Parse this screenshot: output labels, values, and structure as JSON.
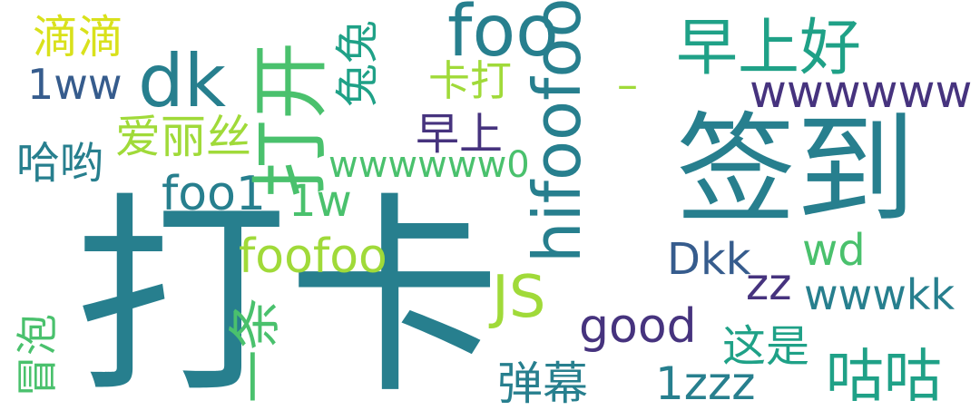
{
  "palette": {
    "purple": "#46337e",
    "dark_blue": "#365c8d",
    "blue": "#277f8e",
    "teal": "#1fa187",
    "green": "#4ac16d",
    "light_green": "#a0da39",
    "yellow": "#d9e11b"
  },
  "words": {
    "daka": "打卡",
    "qiandao": "签到",
    "foofoo_h": "foofoo",
    "hifoofoo": "hifoofoo",
    "foo": "foo",
    "dakai": "打开",
    "zaoshanghao": "早上好",
    "dk": "dk",
    "wwwwww": "wwwwww",
    "didi": "滴滴",
    "tutu": "兔兔",
    "1ww": "1ww",
    "kada": "卡打",
    "dash": "–",
    "ailisi": "爱丽丝",
    "zaoshang": "早上",
    "haliao": "哈哟",
    "wwwwww0": "wwwwww0",
    "foo1": "foo1",
    "1w": "1w",
    "wd": "wd",
    "Dkk": "Dkk",
    "zz": "zz",
    "wwwkk": "wwwkk",
    "js": "JS",
    "good": "good",
    "maopao": "冒泡",
    "yitiao": "一条",
    "zheshi": "这是",
    "gugu": "咕咕",
    "danmu": "弹幕",
    "1zzz": "1zzz"
  }
}
